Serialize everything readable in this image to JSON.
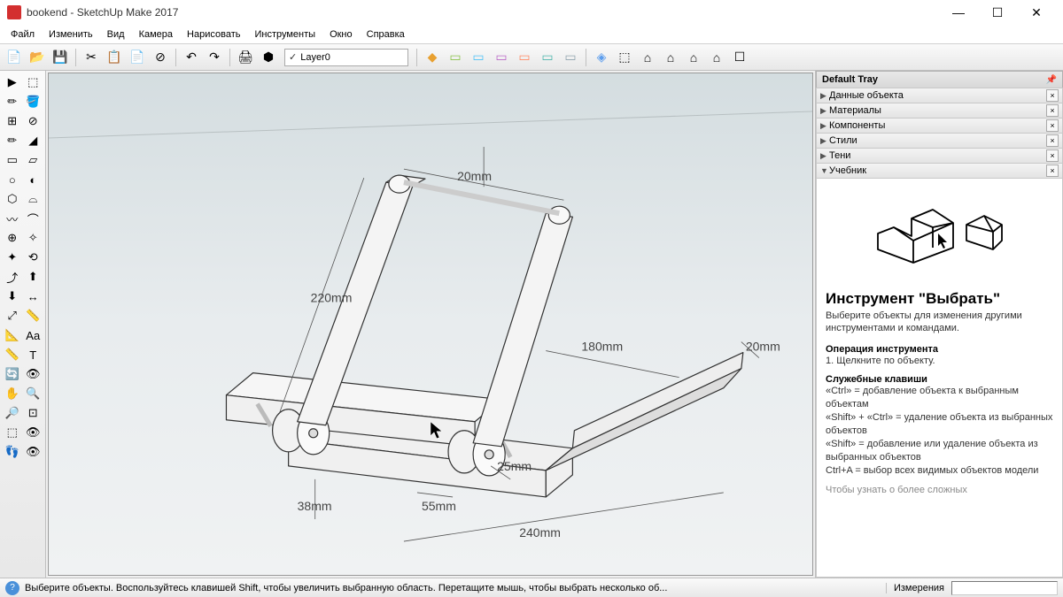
{
  "window": {
    "title": "bookend - SketchUp Make 2017"
  },
  "win_controls": {
    "min": "—",
    "max": "☐",
    "close": "✕"
  },
  "menu": [
    "Файл",
    "Изменить",
    "Вид",
    "Камера",
    "Нарисовать",
    "Инструменты",
    "Окно",
    "Справка"
  ],
  "layer": {
    "check": "✓",
    "name": "Layer0"
  },
  "toolbar_icons": [
    {
      "g": "📄",
      "n": "new"
    },
    {
      "g": "📂",
      "n": "open"
    },
    {
      "g": "💾",
      "n": "save"
    },
    {
      "sep": true
    },
    {
      "g": "✂",
      "n": "cut"
    },
    {
      "g": "📋",
      "n": "copy"
    },
    {
      "g": "📄",
      "n": "paste"
    },
    {
      "g": "⊘",
      "n": "delete"
    },
    {
      "sep": true
    },
    {
      "g": "↶",
      "n": "undo"
    },
    {
      "g": "↷",
      "n": "redo"
    },
    {
      "sep": true
    },
    {
      "g": "🖨",
      "n": "print"
    },
    {
      "g": "⬢",
      "n": "model"
    },
    {
      "sep": true,
      "layer": true
    },
    {
      "sep": true
    },
    {
      "g": "◆",
      "n": "iso",
      "c": "#e8a030"
    },
    {
      "g": "▭",
      "n": "top",
      "c": "#8bc34a"
    },
    {
      "g": "▭",
      "n": "front",
      "c": "#4fc3f7"
    },
    {
      "g": "▭",
      "n": "right",
      "c": "#ba68c8"
    },
    {
      "g": "▭",
      "n": "back",
      "c": "#ff8a65"
    },
    {
      "g": "▭",
      "n": "left",
      "c": "#4db6ac"
    },
    {
      "g": "▭",
      "n": "bottom",
      "c": "#90a4ae"
    },
    {
      "sep": true
    },
    {
      "g": "◈",
      "n": "xray",
      "c": "#5c9ded"
    },
    {
      "g": "⬚",
      "n": "wire"
    },
    {
      "g": "⌂",
      "n": "hl"
    },
    {
      "g": "⌂",
      "n": "sh"
    },
    {
      "g": "⌂",
      "n": "st"
    },
    {
      "g": "⌂",
      "n": "mo"
    },
    {
      "g": "☐",
      "n": "ed"
    }
  ],
  "left_tools": [
    [
      "▶",
      "⬚"
    ],
    [
      "✏",
      "🪣"
    ],
    [
      "⊞",
      "⊘"
    ],
    [
      "✏",
      "◢"
    ],
    [
      "▭",
      "▱"
    ],
    [
      "○",
      "◐"
    ],
    [
      "⬡",
      "⌓"
    ],
    [
      "〰",
      "⌒"
    ],
    [
      "⊕",
      "✧"
    ],
    [
      "✦",
      "⟲"
    ],
    [
      "⤴",
      "⬆"
    ],
    [
      "⬇",
      "↔"
    ],
    [
      "⤢",
      "📏"
    ],
    [
      "📐",
      "Aa"
    ],
    [
      "📏",
      "T"
    ],
    [
      "🔄",
      "👁"
    ],
    [
      "✋",
      "🔍"
    ],
    [
      "🔎",
      "⊡"
    ],
    [
      "⬚",
      "👁"
    ],
    [
      "👣",
      "👁"
    ]
  ],
  "dimensions": {
    "d1": "20mm",
    "d2": "220mm",
    "d3": "180mm",
    "d4": "20mm",
    "d5": "25mm",
    "d6": "55mm",
    "d7": "38mm",
    "d8": "240mm"
  },
  "tray": {
    "title": "Default Tray",
    "panels": [
      "Данные объекта",
      "Материалы",
      "Компоненты",
      "Стили",
      "Тени",
      "Учебник"
    ]
  },
  "instructor": {
    "title": "Инструмент \"Выбрать\"",
    "lead": "Выберите объекты для изменения другими инструментами и командами.",
    "op_title": "Операция инструмента",
    "op_text": "1. Щелкните по объекту.",
    "keys_title": "Служебные клавиши",
    "k1": "«Ctrl» = добавление объекта к выбранным объектам",
    "k2": "«Shift» + «Ctrl» = удаление объекта из выбранных объектов",
    "k3": "«Shift» = добавление или удаление объекта из выбранных объектов",
    "k4": "Ctrl+A = выбор всех видимых объектов модели",
    "more": "Чтобы узнать о более сложных"
  },
  "status": {
    "help": "?",
    "msg": "Выберите объекты. Воспользуйтесь клавишей Shift, чтобы увеличить выбранную область. Перетащите мышь, чтобы выбрать несколько об...",
    "measure_label": "Измерения"
  },
  "colors": {
    "bg_top": "#d4dde0",
    "bg_bot": "#f0f2f3",
    "dim": "#555555",
    "model_fill": "#f4f4f4",
    "model_stroke": "#333333"
  }
}
